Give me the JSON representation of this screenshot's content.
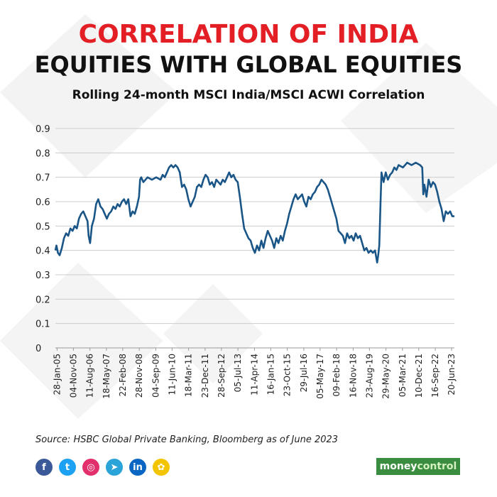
{
  "header": {
    "title_line1": "CORRELATION OF INDIA",
    "title_line2": "EQUITIES WITH GLOBAL EQUITIES",
    "subtitle": "Rolling 24-month MSCI India/MSCI ACWI Correlation"
  },
  "footer": {
    "source": "Source: HSBC Global Private Banking, Bloomberg as of June 2023",
    "brand_money": "money",
    "brand_control": "control",
    "social": [
      {
        "name": "facebook-icon",
        "glyph": "f",
        "color": "#3b5998"
      },
      {
        "name": "twitter-icon",
        "glyph": "t",
        "color": "#1da1f2"
      },
      {
        "name": "instagram-icon",
        "glyph": "◎",
        "color": "#e1306c"
      },
      {
        "name": "telegram-icon",
        "glyph": "➤",
        "color": "#2aa3d8"
      },
      {
        "name": "linkedin-icon",
        "glyph": "in",
        "color": "#0a66c2"
      },
      {
        "name": "koo-icon",
        "glyph": "✿",
        "color": "#f2c500"
      }
    ]
  },
  "colors": {
    "title_accent": "#e31e25",
    "line": "#1a5587",
    "grid": "#cccccc"
  },
  "chart_data": {
    "type": "line",
    "title": "Rolling 24-month MSCI India/MSCI ACWI Correlation",
    "xlabel": "",
    "ylabel": "",
    "ylim": [
      0,
      0.9
    ],
    "yticks": [
      0,
      0.1,
      0.2,
      0.3,
      0.4,
      0.5,
      0.6,
      0.7,
      0.8,
      0.9
    ],
    "ytick_labels": [
      "0",
      "0.1",
      "0.2",
      "0.3",
      "0.4",
      "0.5",
      "0.6",
      "0.7",
      "0.8",
      "0.9"
    ],
    "xlim": [
      2005.0,
      2023.6
    ],
    "x_tick_labels": [
      {
        "label": "28-Jan-05",
        "t": 2005.08
      },
      {
        "label": "04-Nov-05",
        "t": 2005.84
      },
      {
        "label": "11-Aug-06",
        "t": 2006.61
      },
      {
        "label": "18-May-07",
        "t": 2007.38
      },
      {
        "label": "22-Feb-08",
        "t": 2008.14
      },
      {
        "label": "28-Nov-08",
        "t": 2008.91
      },
      {
        "label": "04-Sep-09",
        "t": 2009.68
      },
      {
        "label": "11-Jun-10",
        "t": 2010.44
      },
      {
        "label": "18-Mar-11",
        "t": 2011.21
      },
      {
        "label": "23-Dec-11",
        "t": 2011.98
      },
      {
        "label": "28-Sep-12",
        "t": 2012.74
      },
      {
        "label": "05-Jul-13",
        "t": 2013.51
      },
      {
        "label": "11-Apr-14",
        "t": 2014.28
      },
      {
        "label": "16-Jan-15",
        "t": 2015.04
      },
      {
        "label": "23-Oct-15",
        "t": 2015.81
      },
      {
        "label": "29-Jul-16",
        "t": 2016.58
      },
      {
        "label": "05-May-17",
        "t": 2017.34
      },
      {
        "label": "09-Feb-18",
        "t": 2018.11
      },
      {
        "label": "16-Nov-18",
        "t": 2018.88
      },
      {
        "label": "23-Aug-19",
        "t": 2019.64
      },
      {
        "label": "29-May-20",
        "t": 2020.41
      },
      {
        "label": "05-Mar-21",
        "t": 2021.18
      },
      {
        "label": "10-Dec-21",
        "t": 2021.94
      },
      {
        "label": "16-Sep-22",
        "t": 2022.71
      },
      {
        "label": "20-Jun-23",
        "t": 2023.47
      }
    ],
    "series": [
      {
        "name": "MSCI India/MSCI ACWI correlation",
        "points": [
          [
            2005.0,
            0.4
          ],
          [
            2005.05,
            0.42
          ],
          [
            2005.12,
            0.39
          ],
          [
            2005.2,
            0.38
          ],
          [
            2005.3,
            0.41
          ],
          [
            2005.4,
            0.45
          ],
          [
            2005.5,
            0.47
          ],
          [
            2005.6,
            0.46
          ],
          [
            2005.7,
            0.49
          ],
          [
            2005.8,
            0.48
          ],
          [
            2005.9,
            0.5
          ],
          [
            2006.0,
            0.49
          ],
          [
            2006.1,
            0.53
          ],
          [
            2006.2,
            0.55
          ],
          [
            2006.3,
            0.56
          ],
          [
            2006.4,
            0.54
          ],
          [
            2006.5,
            0.52
          ],
          [
            2006.55,
            0.46
          ],
          [
            2006.62,
            0.43
          ],
          [
            2006.7,
            0.5
          ],
          [
            2006.8,
            0.53
          ],
          [
            2006.9,
            0.59
          ],
          [
            2007.0,
            0.61
          ],
          [
            2007.1,
            0.58
          ],
          [
            2007.2,
            0.57
          ],
          [
            2007.3,
            0.55
          ],
          [
            2007.4,
            0.53
          ],
          [
            2007.5,
            0.55
          ],
          [
            2007.6,
            0.56
          ],
          [
            2007.7,
            0.58
          ],
          [
            2007.8,
            0.57
          ],
          [
            2007.9,
            0.59
          ],
          [
            2008.0,
            0.58
          ],
          [
            2008.1,
            0.6
          ],
          [
            2008.2,
            0.61
          ],
          [
            2008.3,
            0.59
          ],
          [
            2008.4,
            0.61
          ],
          [
            2008.5,
            0.54
          ],
          [
            2008.6,
            0.56
          ],
          [
            2008.7,
            0.55
          ],
          [
            2008.8,
            0.58
          ],
          [
            2008.9,
            0.62
          ],
          [
            2008.95,
            0.69
          ],
          [
            2009.0,
            0.7
          ],
          [
            2009.1,
            0.68
          ],
          [
            2009.3,
            0.7
          ],
          [
            2009.5,
            0.69
          ],
          [
            2009.7,
            0.7
          ],
          [
            2009.9,
            0.69
          ],
          [
            2010.0,
            0.71
          ],
          [
            2010.1,
            0.7
          ],
          [
            2010.2,
            0.72
          ],
          [
            2010.3,
            0.74
          ],
          [
            2010.4,
            0.75
          ],
          [
            2010.5,
            0.74
          ],
          [
            2010.6,
            0.75
          ],
          [
            2010.7,
            0.74
          ],
          [
            2010.8,
            0.72
          ],
          [
            2010.9,
            0.66
          ],
          [
            2011.0,
            0.67
          ],
          [
            2011.1,
            0.65
          ],
          [
            2011.2,
            0.61
          ],
          [
            2011.3,
            0.58
          ],
          [
            2011.4,
            0.6
          ],
          [
            2011.5,
            0.62
          ],
          [
            2011.6,
            0.66
          ],
          [
            2011.7,
            0.67
          ],
          [
            2011.8,
            0.66
          ],
          [
            2011.9,
            0.69
          ],
          [
            2012.0,
            0.71
          ],
          [
            2012.1,
            0.7
          ],
          [
            2012.2,
            0.67
          ],
          [
            2012.3,
            0.68
          ],
          [
            2012.4,
            0.66
          ],
          [
            2012.5,
            0.69
          ],
          [
            2012.6,
            0.68
          ],
          [
            2012.7,
            0.67
          ],
          [
            2012.8,
            0.69
          ],
          [
            2012.9,
            0.68
          ],
          [
            2013.0,
            0.7
          ],
          [
            2013.1,
            0.72
          ],
          [
            2013.2,
            0.7
          ],
          [
            2013.3,
            0.71
          ],
          [
            2013.4,
            0.69
          ],
          [
            2013.5,
            0.68
          ],
          [
            2013.6,
            0.62
          ],
          [
            2013.7,
            0.55
          ],
          [
            2013.8,
            0.49
          ],
          [
            2013.9,
            0.47
          ],
          [
            2014.0,
            0.45
          ],
          [
            2014.1,
            0.44
          ],
          [
            2014.2,
            0.41
          ],
          [
            2014.3,
            0.39
          ],
          [
            2014.4,
            0.42
          ],
          [
            2014.5,
            0.4
          ],
          [
            2014.6,
            0.44
          ],
          [
            2014.7,
            0.41
          ],
          [
            2014.8,
            0.45
          ],
          [
            2014.9,
            0.48
          ],
          [
            2015.0,
            0.46
          ],
          [
            2015.1,
            0.44
          ],
          [
            2015.2,
            0.41
          ],
          [
            2015.3,
            0.45
          ],
          [
            2015.4,
            0.43
          ],
          [
            2015.5,
            0.46
          ],
          [
            2015.6,
            0.44
          ],
          [
            2015.7,
            0.48
          ],
          [
            2015.8,
            0.51
          ],
          [
            2015.9,
            0.55
          ],
          [
            2016.0,
            0.58
          ],
          [
            2016.1,
            0.61
          ],
          [
            2016.2,
            0.63
          ],
          [
            2016.3,
            0.61
          ],
          [
            2016.4,
            0.62
          ],
          [
            2016.5,
            0.63
          ],
          [
            2016.6,
            0.6
          ],
          [
            2016.7,
            0.58
          ],
          [
            2016.8,
            0.62
          ],
          [
            2016.9,
            0.61
          ],
          [
            2017.0,
            0.63
          ],
          [
            2017.1,
            0.64
          ],
          [
            2017.2,
            0.66
          ],
          [
            2017.3,
            0.67
          ],
          [
            2017.4,
            0.69
          ],
          [
            2017.5,
            0.68
          ],
          [
            2017.6,
            0.67
          ],
          [
            2017.7,
            0.65
          ],
          [
            2017.8,
            0.62
          ],
          [
            2017.9,
            0.59
          ],
          [
            2018.0,
            0.56
          ],
          [
            2018.1,
            0.53
          ],
          [
            2018.2,
            0.48
          ],
          [
            2018.3,
            0.47
          ],
          [
            2018.4,
            0.46
          ],
          [
            2018.5,
            0.43
          ],
          [
            2018.6,
            0.47
          ],
          [
            2018.7,
            0.45
          ],
          [
            2018.8,
            0.46
          ],
          [
            2018.9,
            0.44
          ],
          [
            2019.0,
            0.47
          ],
          [
            2019.1,
            0.45
          ],
          [
            2019.2,
            0.46
          ],
          [
            2019.3,
            0.43
          ],
          [
            2019.4,
            0.4
          ],
          [
            2019.5,
            0.41
          ],
          [
            2019.6,
            0.39
          ],
          [
            2019.7,
            0.4
          ],
          [
            2019.8,
            0.39
          ],
          [
            2019.9,
            0.4
          ],
          [
            2020.0,
            0.35
          ],
          [
            2020.05,
            0.38
          ],
          [
            2020.1,
            0.42
          ],
          [
            2020.15,
            0.58
          ],
          [
            2020.2,
            0.72
          ],
          [
            2020.3,
            0.68
          ],
          [
            2020.4,
            0.72
          ],
          [
            2020.5,
            0.69
          ],
          [
            2020.6,
            0.71
          ],
          [
            2020.7,
            0.72
          ],
          [
            2020.8,
            0.74
          ],
          [
            2020.9,
            0.73
          ],
          [
            2021.0,
            0.75
          ],
          [
            2021.2,
            0.74
          ],
          [
            2021.4,
            0.76
          ],
          [
            2021.6,
            0.75
          ],
          [
            2021.8,
            0.76
          ],
          [
            2022.0,
            0.75
          ],
          [
            2022.1,
            0.74
          ],
          [
            2022.15,
            0.63
          ],
          [
            2022.2,
            0.67
          ],
          [
            2022.3,
            0.62
          ],
          [
            2022.4,
            0.69
          ],
          [
            2022.5,
            0.66
          ],
          [
            2022.6,
            0.68
          ],
          [
            2022.7,
            0.67
          ],
          [
            2022.8,
            0.64
          ],
          [
            2022.9,
            0.6
          ],
          [
            2023.0,
            0.57
          ],
          [
            2023.1,
            0.52
          ],
          [
            2023.2,
            0.56
          ],
          [
            2023.3,
            0.55
          ],
          [
            2023.4,
            0.56
          ],
          [
            2023.5,
            0.54
          ],
          [
            2023.6,
            0.54
          ]
        ]
      }
    ]
  }
}
